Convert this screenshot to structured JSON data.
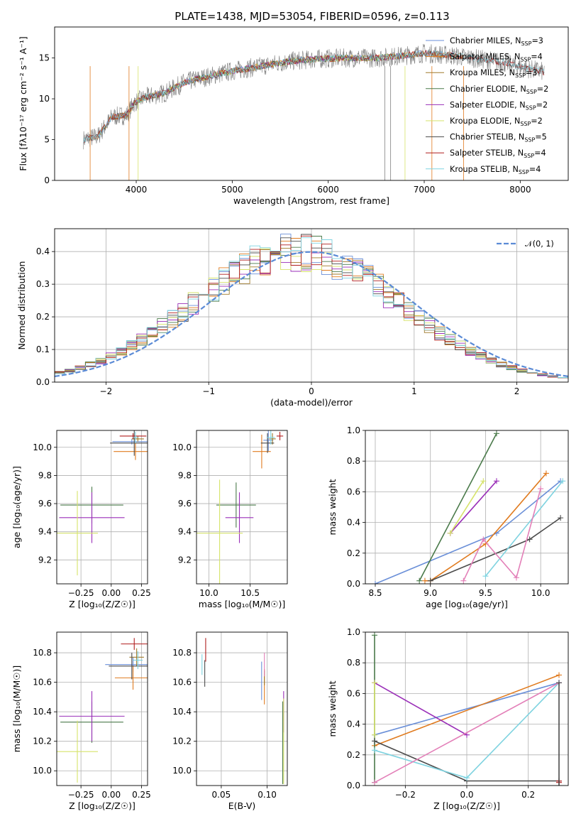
{
  "figure_title": "PLATE=1438, MJD=53054, FIBERID=0596, z=0.113",
  "colors": {
    "Chabrier MILES": "#6a8fd8",
    "Salpeter MILES": "#e07b1f",
    "Kroupa MILES": "#a07a2a",
    "Chabrier ELODIE": "#4a7a4a",
    "Salpeter ELODIE": "#9a2fb8",
    "Kroupa ELODIE": "#d6e36a",
    "Chabrier STELIB": "#4b4b4b",
    "Salpeter STELIB": "#b01e1e",
    "Kroupa STELIB": "#7fd3e0",
    "pink": "#e37fb8",
    "data": "#808080",
    "normal": "#5b8bd6"
  },
  "chart_data": [
    {
      "id": "spectrum",
      "type": "line",
      "title": "PLATE=1438, MJD=53054, FIBERID=0596, z=0.113",
      "xlabel": "wavelength [Angstrom, rest frame]",
      "ylabel": "Flux [fλ10⁻¹⁷ erg cm⁻² s⁻¹ A⁻¹]",
      "xlim": [
        3150,
        8500
      ],
      "ylim": [
        0,
        18.8
      ],
      "xticks": [
        "4000",
        "5000",
        "6000",
        "7000",
        "8000"
      ],
      "yticks": [
        "0",
        "5",
        "10",
        "15"
      ],
      "legend_position": "upper right",
      "legend": [
        {
          "label": "Chabrier MILES",
          "n": "3"
        },
        {
          "label": "Salpeter MILES",
          "n": "4"
        },
        {
          "label": "Kroupa MILES",
          "n": "3"
        },
        {
          "label": "Chabrier ELODIE",
          "n": "2"
        },
        {
          "label": "Salpeter ELODIE",
          "n": "2"
        },
        {
          "label": "Kroupa ELODIE",
          "n": "2"
        },
        {
          "label": "Chabrier STELIB",
          "n": "5"
        },
        {
          "label": "Salpeter STELIB",
          "n": "4"
        },
        {
          "label": "Kroupa STELIB",
          "n": "4"
        }
      ],
      "continuum": [
        [
          3450,
          5.0
        ],
        [
          3600,
          5.4
        ],
        [
          3750,
          7.8
        ],
        [
          3900,
          8.0
        ],
        [
          3980,
          9.5
        ],
        [
          4100,
          10.2
        ],
        [
          4300,
          10.7
        ],
        [
          4500,
          12.0
        ],
        [
          4700,
          12.6
        ],
        [
          5000,
          13.4
        ],
        [
          5300,
          14.0
        ],
        [
          5600,
          14.6
        ],
        [
          5900,
          14.9
        ],
        [
          6200,
          15.0
        ],
        [
          6500,
          15.0
        ],
        [
          6800,
          15.3
        ],
        [
          7000,
          15.6
        ],
        [
          7200,
          15.4
        ],
        [
          7500,
          15.0
        ],
        [
          7800,
          14.5
        ],
        [
          8000,
          13.9
        ],
        [
          8250,
          13.3
        ]
      ]
    },
    {
      "id": "histogram",
      "type": "bar",
      "xlabel": "(data-model)/error",
      "ylabel": "Normed distribution",
      "xlim": [
        -2.5,
        2.5
      ],
      "ylim": [
        0,
        0.47
      ],
      "xticks": [
        "−2",
        "−1",
        "0",
        "1",
        "2"
      ],
      "yticks": [
        "0.0",
        "0.1",
        "0.2",
        "0.3",
        "0.4"
      ],
      "grid": true,
      "legend_position": "upper right",
      "legend": "𝒩(0, 1)",
      "bin_width": 0.1
    },
    {
      "id": "age_vs_Z",
      "type": "scatter",
      "xlabel": "Z [log₁₀(Z/Z☉)]",
      "ylabel": "age  [log₁₀(age/yr)]",
      "xlim": [
        -0.45,
        0.3
      ],
      "ylim": [
        9.03,
        10.12
      ],
      "xticks": [
        "−0.25",
        "0.00",
        "0.25"
      ],
      "yticks": [
        "9.2",
        "9.4",
        "9.6",
        "9.8",
        "10.0"
      ],
      "grid": true,
      "points": [
        {
          "model": "Chabrier MILES",
          "x": 0.17,
          "xerr": 0.16,
          "y": 10.04,
          "yerr": 0.02
        },
        {
          "model": "Salpeter MILES",
          "x": 0.2,
          "xerr": 0.18,
          "y": 9.97,
          "yerr": 0.06
        },
        {
          "model": "Kroupa MILES",
          "x": 0.22,
          "xerr": 0.05,
          "y": 10.06,
          "yerr": 0.02
        },
        {
          "model": "Chabrier ELODIE",
          "x": -0.16,
          "xerr": 0.26,
          "y": 9.59,
          "yerr": 0.13
        },
        {
          "model": "Salpeter ELODIE",
          "x": -0.16,
          "xerr": 0.27,
          "y": 9.5,
          "yerr": 0.18
        },
        {
          "model": "Kroupa ELODIE",
          "x": -0.28,
          "xerr": 0.17,
          "y": 9.39,
          "yerr": 0.3
        },
        {
          "model": "Chabrier STELIB",
          "x": 0.19,
          "xerr": 0.2,
          "y": 10.03,
          "yerr": 0.09
        },
        {
          "model": "Salpeter STELIB",
          "x": 0.18,
          "xerr": 0.11,
          "y": 10.08,
          "yerr": 0.02
        },
        {
          "model": "Kroupa STELIB",
          "x": 0.2,
          "xerr": 0.02,
          "y": 10.07,
          "yerr": 0.04
        }
      ]
    },
    {
      "id": "age_vs_mass",
      "type": "scatter",
      "xlabel": "mass [log₁₀(M/M☉)]",
      "ylabel": "",
      "xlim": [
        9.85,
        10.95
      ],
      "ylim": [
        9.03,
        10.12
      ],
      "xticks": [
        "10.0",
        "10.5"
      ],
      "yticks": [
        "9.2",
        "9.4",
        "9.6",
        "9.8",
        "10.0"
      ],
      "grid": true,
      "points": [
        {
          "model": "Chabrier MILES",
          "x": 10.72,
          "xerr": 0.06,
          "y": 10.05,
          "yerr": 0.08
        },
        {
          "model": "Salpeter MILES",
          "x": 10.64,
          "xerr": 0.11,
          "y": 9.97,
          "yerr": 0.12
        },
        {
          "model": "Kroupa MILES",
          "x": 10.77,
          "xerr": 0.04,
          "y": 10.06,
          "yerr": 0.04
        },
        {
          "model": "Chabrier ELODIE",
          "x": 10.33,
          "xerr": 0.24,
          "y": 9.59,
          "yerr": 0.16
        },
        {
          "model": "Salpeter ELODIE",
          "x": 10.37,
          "xerr": 0.17,
          "y": 9.5,
          "yerr": 0.18
        },
        {
          "model": "Kroupa ELODIE",
          "x": 10.13,
          "xerr": 0.28,
          "y": 9.39,
          "yerr": 0.38
        },
        {
          "model": "Chabrier STELIB",
          "x": 10.71,
          "xerr": 0.08,
          "y": 10.03,
          "yerr": 0.07
        },
        {
          "model": "Salpeter STELIB",
          "x": 10.86,
          "xerr": 0.04,
          "y": 10.08,
          "yerr": 0.03
        },
        {
          "model": "Kroupa STELIB",
          "x": 10.75,
          "xerr": 0.05,
          "y": 10.07,
          "yerr": 0.05
        }
      ]
    },
    {
      "id": "mass_weight_vs_age",
      "type": "line",
      "xlabel": "age  [log₁₀(age/yr)]",
      "ylabel": "mass weight",
      "xlim": [
        8.41,
        10.25
      ],
      "ylim": [
        0,
        1.0
      ],
      "xticks": [
        "8.5",
        "9.0",
        "9.5",
        "10.0"
      ],
      "yticks": [
        "0.0",
        "0.2",
        "0.4",
        "0.6",
        "0.8",
        "1.0"
      ],
      "grid": true,
      "series": [
        {
          "model": "Chabrier MILES",
          "points": [
            [
              8.5,
              0.0
            ],
            [
              9.6,
              0.33
            ],
            [
              10.18,
              0.67
            ]
          ]
        },
        {
          "model": "Salpeter MILES",
          "points": [
            [
              8.95,
              0.02
            ],
            [
              9.0,
              0.02
            ],
            [
              9.5,
              0.26
            ],
            [
              10.05,
              0.72
            ]
          ]
        },
        {
          "model": "Chabrier ELODIE",
          "points": [
            [
              8.9,
              0.02
            ],
            [
              9.6,
              0.98
            ]
          ]
        },
        {
          "model": "Salpeter ELODIE",
          "points": [
            [
              9.18,
              0.33
            ],
            [
              9.6,
              0.67
            ]
          ]
        },
        {
          "model": "Kroupa ELODIE",
          "points": [
            [
              9.18,
              0.33
            ],
            [
              9.48,
              0.67
            ]
          ]
        },
        {
          "model": "Chabrier STELIB",
          "points": [
            [
              9.0,
              0.02
            ],
            [
              9.9,
              0.29
            ],
            [
              10.18,
              0.43
            ]
          ]
        },
        {
          "model": "Kroupa STELIB",
          "points": [
            [
              9.5,
              0.05
            ],
            [
              10.2,
              0.67
            ]
          ]
        },
        {
          "model": "pink",
          "points": [
            [
              9.3,
              0.02
            ],
            [
              9.48,
              0.29
            ],
            [
              9.78,
              0.04
            ],
            [
              10.0,
              0.62
            ]
          ]
        }
      ]
    },
    {
      "id": "mass_vs_Z",
      "type": "scatter",
      "xlabel": "Z [log₁₀(Z/Z☉)]",
      "ylabel": "mass [log₁₀(M/M☉)]",
      "xlim": [
        -0.45,
        0.3
      ],
      "ylim": [
        9.9,
        10.94
      ],
      "xticks": [
        "−0.25",
        "0.00",
        "0.25"
      ],
      "yticks": [
        "10.0",
        "10.2",
        "10.4",
        "10.6",
        "10.8"
      ],
      "grid": true,
      "points": [
        {
          "model": "Chabrier MILES",
          "x": 0.18,
          "xerr": 0.23,
          "y": 10.72,
          "yerr": 0.05
        },
        {
          "model": "Salpeter MILES",
          "x": 0.18,
          "xerr": 0.15,
          "y": 10.63,
          "yerr": 0.08
        },
        {
          "model": "Kroupa MILES",
          "x": 0.21,
          "xerr": 0.06,
          "y": 10.77,
          "yerr": 0.06
        },
        {
          "model": "Chabrier ELODIE",
          "x": -0.16,
          "xerr": 0.26,
          "y": 10.33,
          "yerr": 0.14
        },
        {
          "model": "Salpeter ELODIE",
          "x": -0.16,
          "xerr": 0.27,
          "y": 10.37,
          "yerr": 0.17
        },
        {
          "model": "Kroupa ELODIE",
          "x": -0.28,
          "xerr": 0.17,
          "y": 10.13,
          "yerr": 0.21
        },
        {
          "model": "Chabrier STELIB",
          "x": 0.17,
          "xerr": 0.19,
          "y": 10.71,
          "yerr": 0.09
        },
        {
          "model": "Salpeter STELIB",
          "x": 0.19,
          "xerr": 0.11,
          "y": 10.86,
          "yerr": 0.04
        },
        {
          "model": "Kroupa STELIB",
          "x": 0.22,
          "xerr": 0.04,
          "y": 10.75,
          "yerr": 0.06
        }
      ]
    },
    {
      "id": "mass_vs_ebv",
      "type": "scatter",
      "xlabel": "E(B-V)",
      "ylabel": "",
      "xlim": [
        0.023,
        0.122
      ],
      "ylim": [
        9.9,
        10.94
      ],
      "xticks": [
        "0.05",
        "0.10"
      ],
      "yticks": [
        "10.0",
        "10.2",
        "10.4",
        "10.6",
        "10.8"
      ],
      "grid": true,
      "points": [
        {
          "model": "Chabrier MILES",
          "x": 0.094,
          "y": 10.61,
          "yerr": 0.13
        },
        {
          "model": "Salpeter MILES",
          "x": 0.097,
          "y": 10.57,
          "yerr": 0.12
        },
        {
          "model": "Kroupa MILES",
          "x": 0.097,
          "y": 10.63,
          "yerr": 0.05
        },
        {
          "model": "Chabrier ELODIE",
          "x": 0.117,
          "y": 10.19,
          "yerr": 0.28
        },
        {
          "model": "Salpeter ELODIE",
          "x": 0.118,
          "y": 10.4,
          "yerr": 0.14
        },
        {
          "model": "Kroupa ELODIE",
          "x": 0.118,
          "y": 10.2,
          "yerr": 0.29
        },
        {
          "model": "Chabrier STELIB",
          "x": 0.032,
          "y": 10.66,
          "yerr": 0.09
        },
        {
          "model": "Salpeter STELIB",
          "x": 0.033,
          "y": 10.82,
          "yerr": 0.08
        },
        {
          "model": "Kroupa STELIB",
          "x": 0.029,
          "y": 10.72,
          "yerr": 0.07
        },
        {
          "model": "pink",
          "x": 0.097,
          "y": 10.72,
          "yerr": 0.08
        }
      ]
    },
    {
      "id": "mass_weight_vs_Z",
      "type": "line",
      "xlabel": "Z [log₁₀(Z/Z☉)]",
      "ylabel": "mass weight",
      "xlim": [
        -0.33,
        0.33
      ],
      "ylim": [
        0,
        1.0
      ],
      "xticks": [
        "−0.2",
        "0.0",
        "0.2"
      ],
      "yticks": [
        "0.0",
        "0.2",
        "0.4",
        "0.6",
        "0.8",
        "1.0"
      ],
      "grid": true,
      "series": [
        {
          "model": "Chabrier MILES",
          "points": [
            [
              -0.3,
              0.33
            ],
            [
              0.3,
              0.67
            ]
          ]
        },
        {
          "model": "Salpeter MILES",
          "points": [
            [
              -0.3,
              0.26
            ],
            [
              0.3,
              0.72
            ]
          ]
        },
        {
          "model": "Chabrier ELODIE",
          "points": [
            [
              -0.3,
              0.02
            ],
            [
              -0.3,
              0.98
            ]
          ]
        },
        {
          "model": "Salpeter ELODIE",
          "points": [
            [
              -0.3,
              0.67
            ],
            [
              0.0,
              0.33
            ]
          ]
        },
        {
          "model": "Kroupa ELODIE",
          "points": [
            [
              -0.3,
              0.33
            ],
            [
              -0.3,
              0.67
            ]
          ]
        },
        {
          "model": "Chabrier STELIB",
          "points": [
            [
              -0.3,
              0.29
            ],
            [
              0.0,
              0.03
            ],
            [
              0.3,
              0.03
            ]
          ]
        },
        {
          "model": "Salpeter STELIB",
          "points": [
            [
              0.3,
              0.02
            ],
            [
              0.3,
              0.03
            ]
          ]
        },
        {
          "model": "Kroupa STELIB",
          "points": [
            [
              -0.3,
              0.23
            ],
            [
              0.0,
              0.05
            ],
            [
              0.3,
              0.67
            ]
          ]
        },
        {
          "model": "pink",
          "points": [
            [
              -0.3,
              0.02
            ],
            [
              0.3,
              0.67
            ]
          ]
        },
        {
          "model": "Chabrier STELIB",
          "points": [
            [
              0.3,
              0.0
            ],
            [
              0.3,
              0.67
            ]
          ]
        }
      ]
    }
  ]
}
